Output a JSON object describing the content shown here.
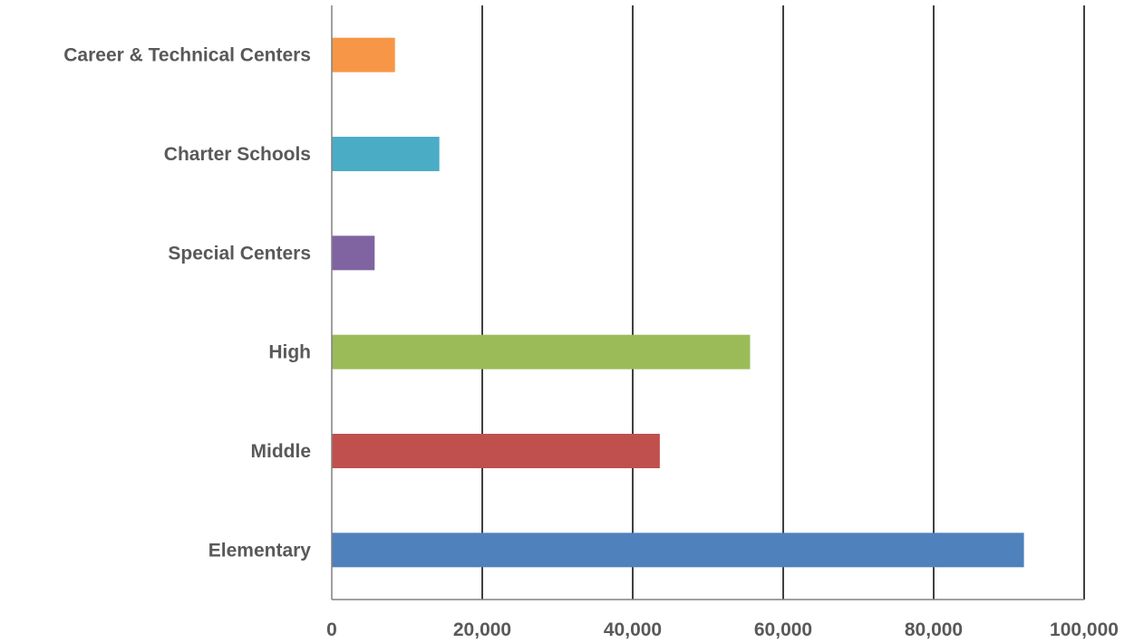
{
  "chart_data": {
    "type": "bar",
    "orientation": "horizontal",
    "title": "",
    "xlabel": "",
    "ylabel": "",
    "categories": [
      "Elementary",
      "Middle ",
      "High",
      "Special Centers",
      "Charter Schools",
      "Career & Technical Centers"
    ],
    "values": [
      92000,
      43600,
      55600,
      5700,
      14300,
      8400
    ],
    "colors": [
      "#4F81BD",
      "#C0504D",
      "#9BBB59",
      "#8064A2",
      "#4BACC6",
      "#F79646"
    ],
    "xlim": [
      0,
      100000
    ],
    "x_ticks": [
      0,
      20000,
      40000,
      60000,
      80000,
      100000
    ],
    "x_tick_labels": [
      "0",
      "20,000",
      "40,000",
      "60,000",
      "80,000",
      "100,000"
    ],
    "grid": "vertical",
    "legend": "none"
  }
}
